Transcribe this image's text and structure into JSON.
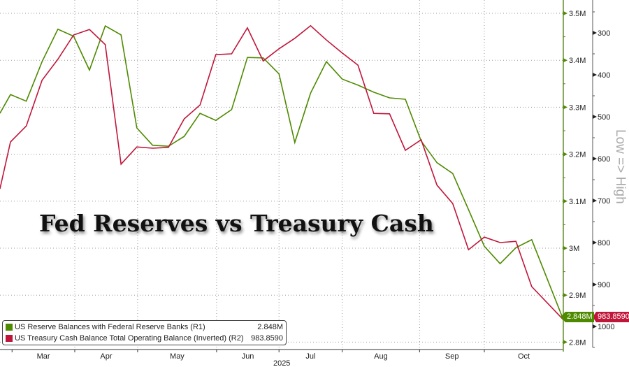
{
  "chart_data": {
    "type": "line",
    "title": "Fed Reserves vs Treasury Cash",
    "x_unit": "weeks",
    "x": [
      -0.67,
      0,
      1,
      2,
      3,
      4,
      5,
      6,
      7,
      8,
      9,
      10,
      11,
      12,
      13,
      14,
      15,
      16,
      17,
      18,
      19,
      20,
      21,
      22,
      23,
      24,
      25,
      26,
      27,
      28,
      29,
      30,
      31,
      32,
      33,
      35
    ],
    "x_ticks": [
      {
        "label": "Mar",
        "start": 0.1,
        "end": 4.07
      },
      {
        "label": "Apr",
        "start": 4.07,
        "end": 8.05
      },
      {
        "label": "May",
        "start": 8.05,
        "end": 13.05
      },
      {
        "label": "Jun",
        "start": 13.05,
        "end": 17.0
      },
      {
        "label": "Jul",
        "start": 17.0,
        "end": 21.0
      },
      {
        "label": "Aug",
        "start": 21.0,
        "end": 25.9
      },
      {
        "label": "Sep",
        "start": 25.9,
        "end": 30.0
      },
      {
        "label": "Oct",
        "start": 30.0,
        "end": 35
      }
    ],
    "x_year_label": "2025",
    "series": [
      {
        "name": "US Reserve Balances with Federal Reserve Banks (R1)",
        "axis": "R1",
        "color": "#4e8a00",
        "last_value": "2.848M",
        "last_label": "2.848M",
        "values": [
          3.287,
          3.327,
          3.313,
          3.397,
          3.466,
          3.451,
          3.379,
          3.473,
          3.454,
          3.256,
          3.219,
          3.217,
          3.238,
          3.287,
          3.272,
          3.295,
          3.406,
          3.405,
          3.371,
          3.225,
          3.33,
          3.397,
          3.36,
          3.347,
          3.332,
          3.32,
          3.317,
          3.228,
          3.182,
          3.159,
          3.082,
          3.004,
          2.967,
          3.001,
          3.018,
          2.848
        ]
      },
      {
        "name": "US Treasury Cash Balance Total Operating Balance (Inverted) (R2)",
        "axis": "R2",
        "color": "#c0163a",
        "last_value": "983.8590",
        "last_label": "983.8590",
        "values": [
          672,
          560,
          522,
          413,
          363,
          305,
          292,
          328,
          613,
          572,
          575,
          573,
          505,
          472,
          352,
          350,
          288,
          367,
          338,
          313,
          283,
          317,
          348,
          377,
          492,
          493,
          580,
          555,
          663,
          707,
          817,
          787,
          800,
          797,
          905,
          983.859
        ]
      }
    ],
    "axes": {
      "R1": {
        "ylim": [
          2.8,
          3.5
        ],
        "ticks": [
          {
            "v": 3.5,
            "label": "3.5M"
          },
          {
            "v": 3.4,
            "label": "3.4M"
          },
          {
            "v": 3.3,
            "label": "3.3M"
          },
          {
            "v": 3.2,
            "label": "3.2M"
          },
          {
            "v": 3.1,
            "label": "3.1M"
          },
          {
            "v": 3.0,
            "label": "3M"
          },
          {
            "v": 2.9,
            "label": "2.9M"
          },
          {
            "v": 2.8,
            "label": "2.8M"
          }
        ]
      },
      "R2": {
        "inverted": true,
        "ylim": [
          255,
          1055
        ],
        "ticks": [
          {
            "v": 300,
            "label": "300"
          },
          {
            "v": 400,
            "label": "400"
          },
          {
            "v": 500,
            "label": "500"
          },
          {
            "v": 600,
            "label": "600"
          },
          {
            "v": 700,
            "label": "700"
          },
          {
            "v": 800,
            "label": "800"
          },
          {
            "v": 900,
            "label": "900"
          },
          {
            "v": 1000,
            "label": "1000"
          }
        ],
        "annotation": "Low => High"
      }
    },
    "grid": true,
    "legend_position": "bottom-left"
  }
}
